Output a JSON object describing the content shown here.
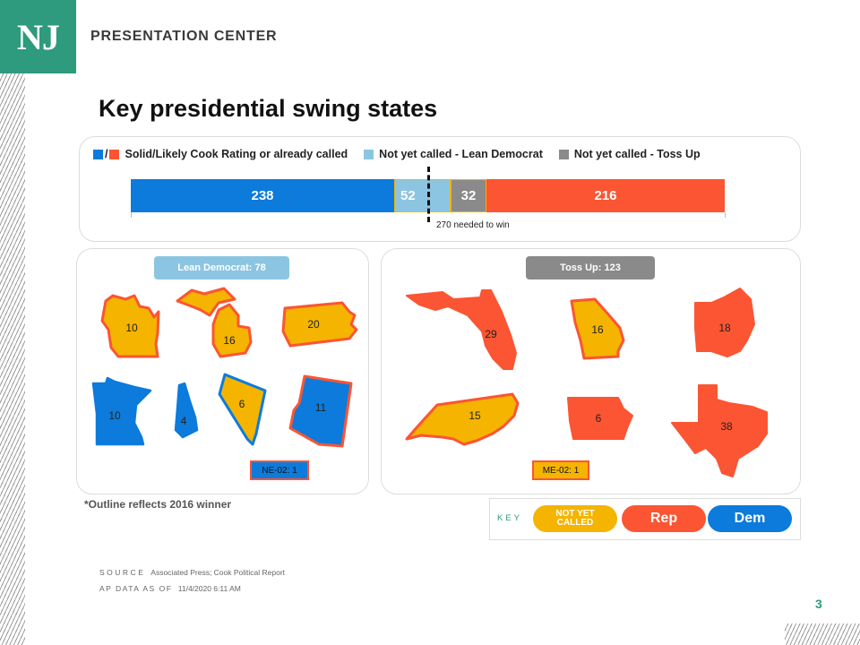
{
  "header": {
    "logo": "NJ",
    "brand": "PRESENTATION CENTER"
  },
  "title": "Key presidential swing states",
  "legend": {
    "solid_slash": "/",
    "solid_label": "Solid/Likely Cook Rating or already called",
    "lean_label": "Not yet called - Lean Democrat",
    "toss_label": "Not yet called - Toss Up"
  },
  "colors": {
    "dem": "#0c7bdc",
    "rep": "#fb5533",
    "lean_dem": "#8cc5e2",
    "toss_up": "#8a8a8a",
    "not_yet_called": "#f4b400",
    "brand_green": "#2e9a7e"
  },
  "chart_data": {
    "type": "bar",
    "orientation": "horizontal-stacked",
    "series": [
      {
        "name": "Solid/Likely Democrat",
        "values": [
          238
        ]
      },
      {
        "name": "Not yet called - Lean Democrat",
        "values": [
          52
        ]
      },
      {
        "name": "Not yet called - Toss Up",
        "values": [
          32
        ]
      },
      {
        "name": "Solid/Likely Republican",
        "values": [
          216
        ]
      }
    ],
    "threshold": {
      "value": 270,
      "label": "270 needed to win"
    },
    "xlim": [
      0,
      538
    ]
  },
  "bar_labels": {
    "dem": "238",
    "lean": "52",
    "toss": "32",
    "rep": "216",
    "needed": "270 needed to win"
  },
  "lean_panel": {
    "header": "Lean Democrat: 78",
    "states": [
      {
        "state": "Wisconsin",
        "ev": "10",
        "status": "not-yet-called",
        "outline_2016": "rep"
      },
      {
        "state": "Michigan",
        "ev": "16",
        "status": "not-yet-called",
        "outline_2016": "rep"
      },
      {
        "state": "Pennsylvania",
        "ev": "20",
        "status": "not-yet-called",
        "outline_2016": "rep"
      },
      {
        "state": "Minnesota",
        "ev": "10",
        "status": "dem",
        "outline_2016": "dem"
      },
      {
        "state": "New Hampshire",
        "ev": "4",
        "status": "dem",
        "outline_2016": "dem"
      },
      {
        "state": "Nevada",
        "ev": "6",
        "status": "not-yet-called",
        "outline_2016": "dem"
      },
      {
        "state": "Arizona",
        "ev": "11",
        "status": "dem",
        "outline_2016": "rep"
      }
    ],
    "district_tag": "NE-02: 1"
  },
  "toss_panel": {
    "header": "Toss Up: 123",
    "states": [
      {
        "state": "Florida",
        "ev": "29",
        "status": "rep",
        "outline_2016": "rep"
      },
      {
        "state": "Georgia",
        "ev": "16",
        "status": "not-yet-called",
        "outline_2016": "rep"
      },
      {
        "state": "Ohio",
        "ev": "18",
        "status": "rep",
        "outline_2016": "rep"
      },
      {
        "state": "North Carolina",
        "ev": "15",
        "status": "not-yet-called",
        "outline_2016": "rep"
      },
      {
        "state": "Iowa",
        "ev": "6",
        "status": "rep",
        "outline_2016": "rep"
      },
      {
        "state": "Texas",
        "ev": "38",
        "status": "rep",
        "outline_2016": "rep"
      }
    ],
    "district_tag": "ME-02: 1"
  },
  "footnote": "*Outline reflects 2016 winner",
  "key": {
    "label": "KEY",
    "not_yet_called_line1": "NOT YET",
    "not_yet_called_line2": "CALLED",
    "rep": "Rep",
    "dem": "Dem"
  },
  "source": {
    "label": "SOURCE",
    "text": "Associated Press; Cook Political Report",
    "asof_label": "AP DATA AS OF",
    "asof_value": "11/4/2020 6:11 AM"
  },
  "page_number": "3"
}
